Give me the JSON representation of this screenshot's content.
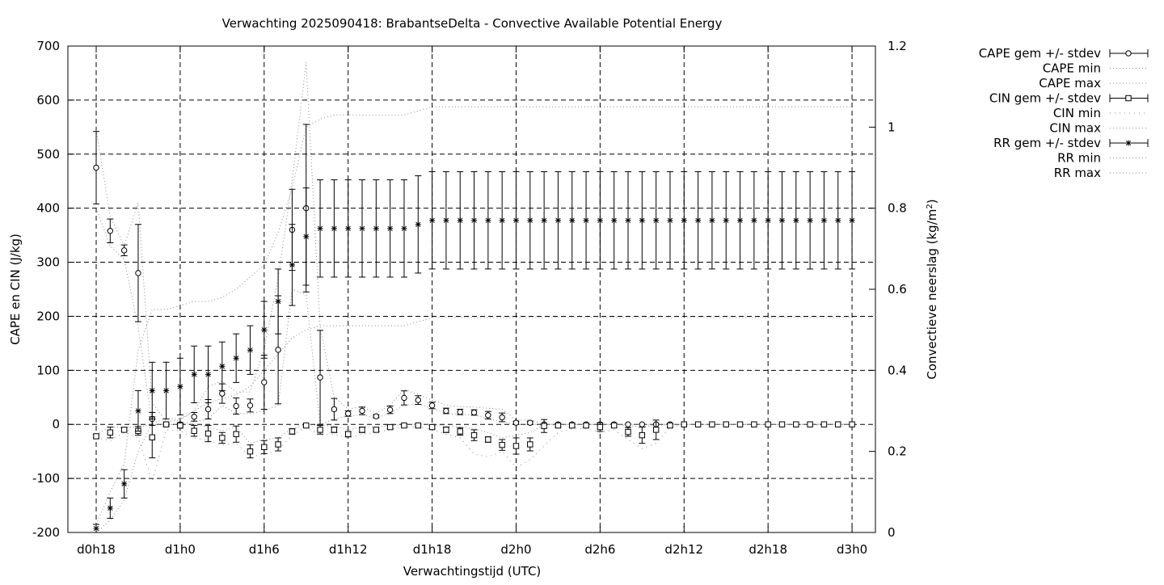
{
  "chart_data": {
    "type": "line",
    "title": "Verwachting 2025090418: BrabantseDelta - Convective Available Potential Energy",
    "xlabel": "Verwachtingstijd (UTC)",
    "ylabel": "CAPE en CIN (J/kg)",
    "y2label_main": "Convectieve neerslag (kg/m",
    "y2label_sup": "2",
    "y2label_end": ")",
    "x_unit": "hours since d0h0",
    "xlim": [
      16,
      75
    ],
    "ylim": [
      -200,
      700
    ],
    "y2lim": [
      0,
      1.2
    ],
    "grid": true,
    "legend_position": "right",
    "x_ticks": [
      {
        "value": 18,
        "label": "d0h18"
      },
      {
        "value": 24,
        "label": "d1h0"
      },
      {
        "value": 30,
        "label": "d1h6"
      },
      {
        "value": 36,
        "label": "d1h12"
      },
      {
        "value": 42,
        "label": "d1h18"
      },
      {
        "value": 48,
        "label": "d2h0"
      },
      {
        "value": 54,
        "label": "d2h6"
      },
      {
        "value": 60,
        "label": "d2h12"
      },
      {
        "value": 66,
        "label": "d2h18"
      },
      {
        "value": 72,
        "label": "d3h0"
      }
    ],
    "y_ticks": [
      -200,
      -100,
      0,
      100,
      200,
      300,
      400,
      500,
      600,
      700
    ],
    "y2_ticks": [
      "0",
      "0.2",
      "0.4",
      "0.6",
      "0.8",
      "1",
      "1.2"
    ],
    "legend": [
      {
        "label": "CAPE gem +/- stdev",
        "style": "errorbar",
        "marker": "circle"
      },
      {
        "label": "CAPE min",
        "style": "dotted"
      },
      {
        "label": "CAPE max",
        "style": "dotted"
      },
      {
        "label": "CIN gem +/- stdev",
        "style": "errorbar",
        "marker": "square"
      },
      {
        "label": "CIN min",
        "style": "sparse-dotted"
      },
      {
        "label": "CIN max",
        "style": "dotted"
      },
      {
        "label": "RR gem +/- stdev",
        "style": "errorbar",
        "marker": "star"
      },
      {
        "label": "RR min",
        "style": "dotted"
      },
      {
        "label": "RR max",
        "style": "dotted"
      }
    ],
    "series": [
      {
        "name": "CAPE gem +/- stdev",
        "x": [
          18,
          19,
          20,
          21,
          22,
          23,
          24,
          25,
          26,
          27,
          28,
          29,
          30,
          31,
          32,
          33,
          34,
          35,
          36,
          37,
          38,
          39,
          40,
          41,
          42,
          43,
          44,
          45,
          46,
          47,
          48,
          49,
          50,
          51,
          52,
          53,
          54,
          55,
          56,
          57,
          58,
          59,
          60,
          61,
          62,
          63,
          64,
          65,
          66,
          67,
          68,
          69,
          70,
          71,
          72
        ],
        "y": [
          475,
          358,
          322,
          280,
          10,
          0,
          0,
          14,
          28,
          57,
          34,
          35,
          78,
          138,
          360,
          400,
          87,
          28,
          20,
          25,
          15,
          27,
          49,
          45,
          35,
          25,
          23,
          22,
          17,
          13,
          3,
          3,
          0,
          0,
          0,
          0,
          0,
          0,
          0,
          0,
          0,
          0,
          0,
          0,
          0,
          0,
          0,
          0,
          0,
          0,
          0,
          0,
          0,
          0,
          0
        ],
        "yerr": [
          67,
          22,
          10,
          90,
          12,
          3,
          3,
          8,
          18,
          18,
          15,
          12,
          50,
          100,
          75,
          155,
          87,
          20,
          5,
          7,
          3,
          7,
          13,
          8,
          6,
          5,
          5,
          5,
          7,
          8,
          3,
          3,
          0,
          0,
          0,
          0,
          0,
          0,
          0,
          0,
          0,
          0,
          0,
          0,
          0,
          0,
          0,
          0,
          0,
          0,
          0,
          0,
          0,
          0,
          0
        ]
      },
      {
        "name": "CIN gem +/- stdev",
        "x": [
          18,
          19,
          20,
          21,
          22,
          23,
          24,
          25,
          26,
          27,
          28,
          29,
          30,
          31,
          32,
          33,
          34,
          35,
          36,
          37,
          38,
          39,
          40,
          41,
          42,
          43,
          44,
          45,
          46,
          47,
          48,
          49,
          50,
          51,
          52,
          53,
          54,
          55,
          56,
          57,
          58,
          59,
          60,
          61,
          62,
          63,
          64,
          65,
          66,
          67,
          68,
          69,
          70,
          71,
          72
        ],
        "y": [
          -22,
          -15,
          -10,
          -12,
          -24,
          0,
          -2,
          -12,
          -17,
          -25,
          -18,
          -50,
          -42,
          -37,
          -13,
          -2,
          -10,
          -10,
          -18,
          -10,
          -10,
          -5,
          -2,
          -2,
          -5,
          -10,
          -13,
          -20,
          -28,
          -38,
          -40,
          -37,
          -3,
          -2,
          -2,
          -2,
          -5,
          -2,
          -14,
          -20,
          -10,
          -2,
          0,
          0,
          0,
          0,
          0,
          0,
          0,
          0,
          0,
          0,
          0,
          0,
          0
        ],
        "yerr": [
          3,
          10,
          3,
          8,
          38,
          3,
          5,
          10,
          15,
          10,
          15,
          12,
          12,
          12,
          5,
          2,
          8,
          5,
          5,
          5,
          3,
          3,
          2,
          2,
          3,
          5,
          7,
          10,
          5,
          10,
          15,
          12,
          12,
          3,
          3,
          3,
          8,
          3,
          8,
          15,
          18,
          3,
          0,
          0,
          0,
          0,
          0,
          0,
          0,
          0,
          0,
          0,
          0,
          0,
          0
        ]
      },
      {
        "name": "RR gem +/- stdev",
        "x": [
          18,
          19,
          20,
          21,
          22,
          23,
          24,
          25,
          26,
          27,
          28,
          29,
          30,
          31,
          32,
          33,
          34,
          35,
          36,
          37,
          38,
          39,
          40,
          41,
          42,
          43,
          44,
          45,
          46,
          47,
          48,
          49,
          50,
          51,
          52,
          53,
          54,
          55,
          56,
          57,
          58,
          59,
          60,
          61,
          62,
          63,
          64,
          65,
          66,
          67,
          68,
          69,
          70,
          71,
          72
        ],
        "y": [
          0.01,
          0.06,
          0.12,
          0.3,
          0.35,
          0.35,
          0.36,
          0.39,
          0.39,
          0.41,
          0.43,
          0.45,
          0.5,
          0.57,
          0.66,
          0.73,
          0.75,
          0.75,
          0.75,
          0.75,
          0.75,
          0.75,
          0.75,
          0.76,
          0.77,
          0.77,
          0.77,
          0.77,
          0.77,
          0.77,
          0.77,
          0.77,
          0.77,
          0.77,
          0.77,
          0.77,
          0.77,
          0.77,
          0.77,
          0.77,
          0.77,
          0.77,
          0.77,
          0.77,
          0.77,
          0.77,
          0.77,
          0.77,
          0.77,
          0.77,
          0.77,
          0.77,
          0.77,
          0.77,
          0.77
        ],
        "yerr": [
          0.01,
          0.025,
          0.035,
          0.05,
          0.07,
          0.07,
          0.07,
          0.07,
          0.07,
          0.06,
          0.06,
          0.06,
          0.07,
          0.08,
          0.1,
          0.12,
          0.12,
          0.12,
          0.12,
          0.12,
          0.12,
          0.12,
          0.12,
          0.12,
          0.12,
          0.12,
          0.12,
          0.12,
          0.12,
          0.12,
          0.12,
          0.12,
          0.12,
          0.12,
          0.12,
          0.12,
          0.12,
          0.12,
          0.12,
          0.12,
          0.12,
          0.12,
          0.12,
          0.12,
          0.12,
          0.12,
          0.12,
          0.12,
          0.12,
          0.12,
          0.12,
          0.12,
          0.12,
          0.12,
          0.12
        ]
      },
      {
        "name": "CAPE min",
        "axis": "y",
        "x": [
          18,
          19,
          20,
          21,
          22,
          23,
          24,
          25,
          26,
          27,
          28,
          29,
          30,
          31,
          32,
          33,
          34,
          35,
          36,
          37,
          38,
          39,
          40,
          41,
          42,
          43,
          44,
          45,
          46,
          47,
          48,
          49,
          50,
          51,
          52,
          53,
          54,
          55,
          56,
          57,
          58,
          59,
          60,
          61,
          62,
          63,
          64,
          65,
          66,
          67,
          68,
          69,
          70,
          71,
          72
        ],
        "y": [
          400,
          330,
          305,
          180,
          0,
          0,
          0,
          5,
          10,
          35,
          20,
          20,
          25,
          35,
          250,
          240,
          0,
          10,
          15,
          18,
          12,
          20,
          35,
          38,
          30,
          20,
          18,
          18,
          10,
          5,
          0,
          0,
          0,
          0,
          0,
          0,
          0,
          0,
          0,
          0,
          0,
          0,
          0,
          0,
          0,
          0,
          0,
          0,
          0,
          0,
          0,
          0,
          0,
          0,
          0
        ]
      },
      {
        "name": "CAPE max",
        "axis": "y",
        "x": [
          18,
          19,
          20,
          21,
          22,
          23,
          24,
          25,
          26,
          27,
          28,
          29,
          30,
          31,
          32,
          33,
          34,
          35,
          36,
          37,
          38,
          39,
          40,
          41,
          42,
          43,
          44,
          45,
          46,
          47,
          48,
          49,
          50,
          51,
          52,
          53,
          54,
          55,
          56,
          57,
          58,
          59,
          60,
          61,
          62,
          63,
          64,
          65,
          66,
          67,
          68,
          69,
          70,
          71,
          72
        ],
        "y": [
          545,
          385,
          330,
          410,
          40,
          5,
          8,
          25,
          70,
          80,
          60,
          60,
          140,
          270,
          450,
          670,
          180,
          50,
          28,
          33,
          20,
          35,
          65,
          55,
          45,
          35,
          33,
          32,
          30,
          28,
          8,
          8,
          0,
          0,
          0,
          0,
          0,
          0,
          0,
          0,
          0,
          0,
          0,
          0,
          0,
          0,
          0,
          0,
          0,
          0,
          0,
          0,
          0,
          0,
          0
        ]
      },
      {
        "name": "CIN min",
        "axis": "y",
        "x": [
          18,
          19,
          20,
          21,
          22,
          23,
          24,
          25,
          26,
          27,
          28,
          29,
          30,
          31,
          32,
          33,
          34,
          35,
          36,
          37,
          38,
          39,
          40,
          41,
          42,
          43,
          44,
          45,
          46,
          47,
          48,
          49,
          50,
          51,
          52,
          53,
          54,
          55,
          56,
          57,
          58,
          59,
          60,
          61,
          62,
          63,
          64,
          65,
          66,
          67,
          68,
          69,
          70,
          71,
          72
        ],
        "y": [
          -25,
          -30,
          -15,
          -25,
          -105,
          -10,
          -12,
          -25,
          -30,
          -38,
          -35,
          -60,
          -55,
          -48,
          -20,
          -5,
          -20,
          -18,
          -25,
          -18,
          -15,
          -10,
          -5,
          -5,
          -10,
          -18,
          -25,
          -55,
          -60,
          -50,
          -80,
          -65,
          -40,
          -15,
          -8,
          -8,
          -15,
          -10,
          -28,
          -45,
          -35,
          -5,
          0,
          0,
          0,
          0,
          0,
          0,
          0,
          0,
          0,
          0,
          0,
          0,
          0
        ]
      },
      {
        "name": "CIN max",
        "axis": "y",
        "x": [
          18,
          19,
          20,
          21,
          22,
          23,
          24,
          25,
          26,
          27,
          28,
          29,
          30,
          31,
          32,
          33,
          34,
          35,
          36,
          37,
          38,
          39,
          40,
          41,
          42,
          43,
          44,
          45,
          46,
          47,
          48,
          49,
          50,
          51,
          52,
          53,
          54,
          55,
          56,
          57,
          58,
          59,
          60,
          61,
          62,
          63,
          64,
          65,
          66,
          67,
          68,
          69,
          70,
          71,
          72
        ],
        "y": [
          -18,
          -5,
          -5,
          -5,
          0,
          0,
          0,
          0,
          -5,
          -12,
          -5,
          -35,
          -28,
          -25,
          -8,
          0,
          -2,
          -3,
          -10,
          -5,
          -5,
          -2,
          0,
          0,
          0,
          -3,
          -5,
          -8,
          -15,
          -25,
          -20,
          -15,
          0,
          0,
          0,
          0,
          0,
          0,
          -2,
          -5,
          -2,
          0,
          0,
          0,
          0,
          0,
          0,
          0,
          0,
          0,
          0,
          0,
          0,
          0,
          0
        ]
      },
      {
        "name": "RR min",
        "axis": "y2",
        "x": [
          18,
          19,
          20,
          21,
          22,
          23,
          24,
          25,
          26,
          27,
          28,
          29,
          30,
          31,
          32,
          33,
          34,
          35,
          36,
          37,
          38,
          39,
          40,
          41,
          42,
          43,
          44,
          45,
          46,
          47,
          48,
          49,
          50,
          51,
          52,
          53,
          54,
          55,
          56,
          57,
          58,
          59,
          60,
          61,
          62,
          63,
          64,
          65,
          66,
          67,
          68,
          69,
          70,
          71,
          72
        ],
        "y": [
          0,
          0.03,
          0.08,
          0.2,
          0.27,
          0.28,
          0.28,
          0.3,
          0.32,
          0.33,
          0.34,
          0.36,
          0.4,
          0.44,
          0.48,
          0.5,
          0.51,
          0.51,
          0.51,
          0.51,
          0.51,
          0.51,
          0.51,
          0.52,
          0.53,
          0.53,
          0.53,
          0.53,
          0.53,
          0.53,
          0.53,
          0.53,
          0.53,
          0.53,
          0.53,
          0.53,
          0.53,
          0.53,
          0.53,
          0.53,
          0.53,
          0.53,
          0.53,
          0.53,
          0.53,
          0.53,
          0.53,
          0.53,
          0.53,
          0.53,
          0.53,
          0.53,
          0.53,
          0.53,
          0.53
        ]
      },
      {
        "name": "RR max",
        "axis": "y2",
        "x": [
          18,
          19,
          20,
          21,
          22,
          23,
          24,
          25,
          26,
          27,
          28,
          29,
          30,
          31,
          32,
          33,
          34,
          35,
          36,
          37,
          38,
          39,
          40,
          41,
          42,
          43,
          44,
          45,
          46,
          47,
          48,
          49,
          50,
          51,
          52,
          53,
          54,
          55,
          56,
          57,
          58,
          59,
          60,
          61,
          62,
          63,
          64,
          65,
          66,
          67,
          68,
          69,
          70,
          71,
          72
        ],
        "y": [
          0.02,
          0.1,
          0.17,
          0.45,
          0.55,
          0.55,
          0.56,
          0.57,
          0.57,
          0.58,
          0.6,
          0.63,
          0.66,
          0.74,
          0.85,
          1.0,
          1.02,
          1.03,
          1.03,
          1.03,
          1.03,
          1.03,
          1.03,
          1.04,
          1.05,
          1.05,
          1.05,
          1.05,
          1.05,
          1.05,
          1.05,
          1.05,
          1.05,
          1.05,
          1.05,
          1.05,
          1.05,
          1.05,
          1.05,
          1.05,
          1.05,
          1.05,
          1.05,
          1.05,
          1.05,
          1.05,
          1.05,
          1.05,
          1.05,
          1.05,
          1.05,
          1.05,
          1.05,
          1.05,
          1.05
        ]
      }
    ]
  }
}
